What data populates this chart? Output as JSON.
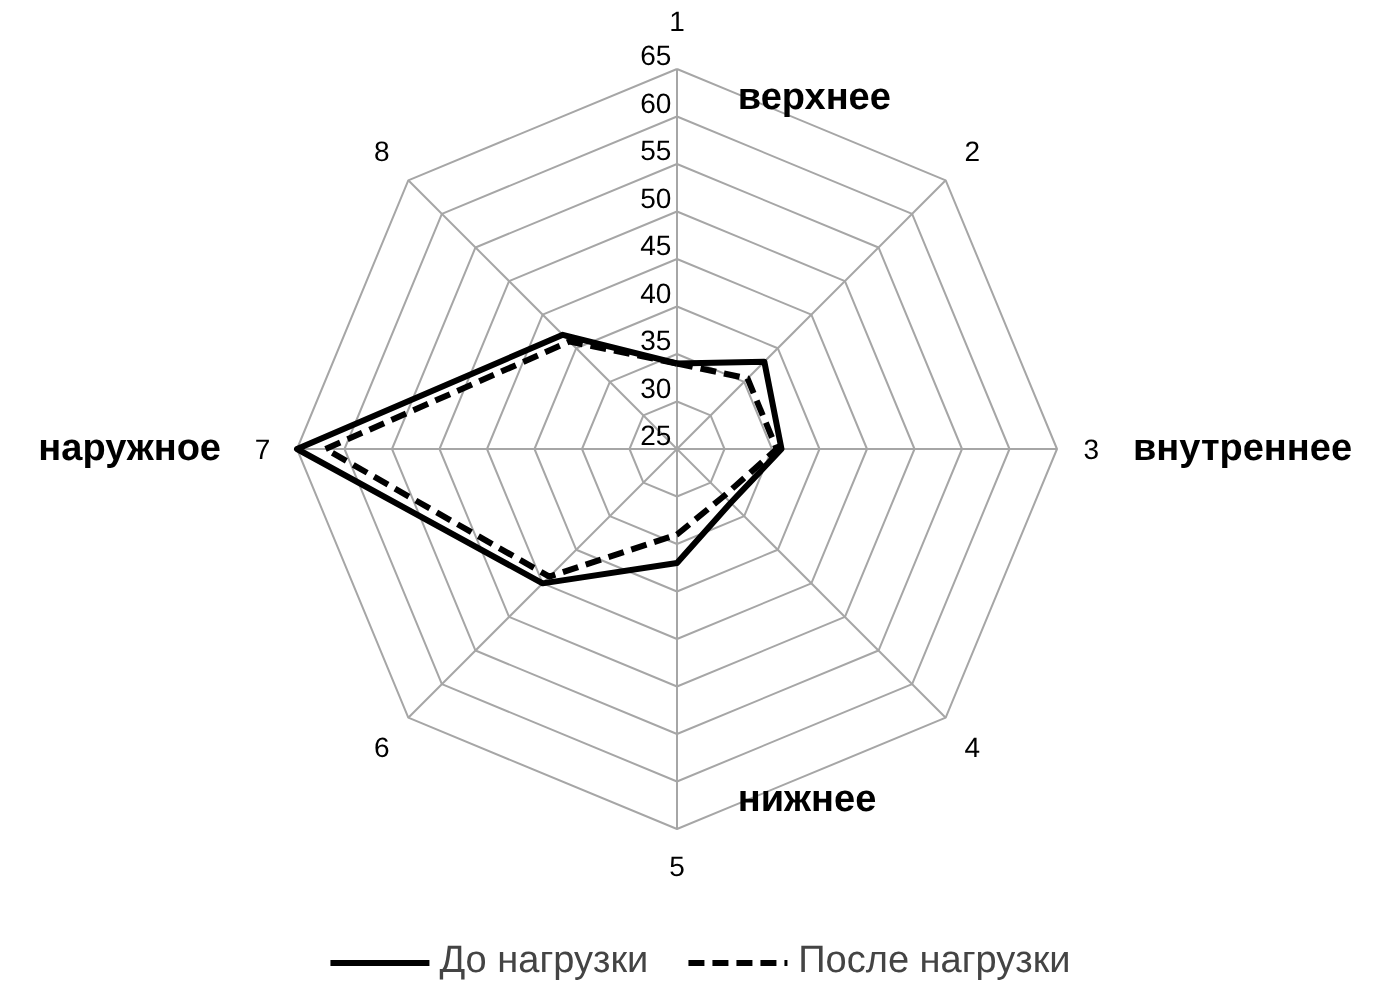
{
  "chart_data": {
    "type": "radar",
    "categories": [
      "1",
      "2",
      "3",
      "4",
      "5",
      "6",
      "7",
      "8"
    ],
    "ylim": [
      25,
      65
    ],
    "yticks": [
      25,
      30,
      35,
      40,
      45,
      50,
      55,
      60,
      65
    ],
    "grid": true,
    "legend": "bottom",
    "series": [
      {
        "name": "До нагрузки",
        "color": "#000000",
        "line_style": "solid",
        "values": [
          34,
          38,
          36,
          33,
          37,
          45,
          65,
          42
        ]
      },
      {
        "name": "После нагрузки",
        "color": "#000000",
        "line_style": "dashed",
        "values": [
          34,
          35.5,
          35.5,
          32,
          34,
          44,
          62,
          41
        ]
      }
    ],
    "annotations": [
      {
        "text": "верхнее",
        "x": "1"
      },
      {
        "text": "внутреннее",
        "x": "3"
      },
      {
        "text": "нижнее",
        "x": "5"
      },
      {
        "text": "наружное",
        "x": "7"
      }
    ]
  }
}
